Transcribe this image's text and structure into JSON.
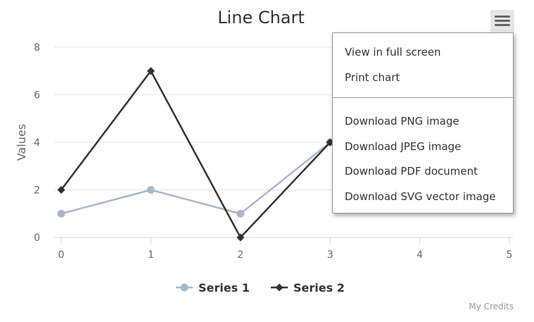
{
  "menu": {
    "items": [
      {
        "label": "View in full screen"
      },
      {
        "label": "Print chart"
      },
      {
        "label": "Download PNG image"
      },
      {
        "label": "Download JPEG image"
      },
      {
        "label": "Download PDF document"
      },
      {
        "label": "Download SVG vector image"
      }
    ]
  },
  "credits": "My Credits",
  "chart_data": {
    "type": "line",
    "title": "Line Chart",
    "xlabel": "",
    "ylabel": "Values",
    "x": [
      0,
      1,
      2,
      3
    ],
    "xlim": [
      0,
      5
    ],
    "ylim": [
      0,
      8
    ],
    "xticks": [
      "0",
      "1",
      "2",
      "3",
      "4",
      "5"
    ],
    "yticks": [
      "0",
      "2",
      "4",
      "6",
      "8"
    ],
    "grid": true,
    "legend": "bottom",
    "series": [
      {
        "name": "Series 1",
        "values": [
          1,
          2,
          1,
          4
        ],
        "color": "#a8b8cc",
        "marker": "circle"
      },
      {
        "name": "Series 2",
        "values": [
          2,
          7,
          0,
          4
        ],
        "color": "#333333",
        "marker": "diamond"
      }
    ]
  }
}
